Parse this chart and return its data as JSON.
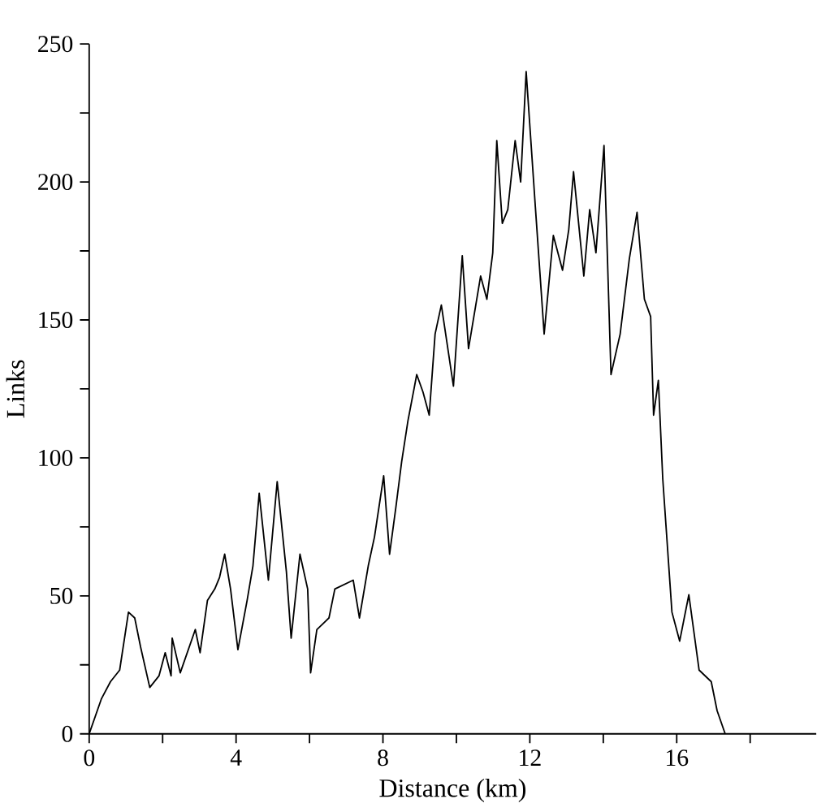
{
  "chart_data": {
    "type": "line",
    "xlabel": "Distance (km)",
    "ylabel": "Links",
    "xlim": [
      0,
      19.8
    ],
    "ylim": [
      0,
      250
    ],
    "xticks": [
      0,
      {
        "value": 2,
        "label": null
      },
      4,
      {
        "value": 6,
        "label": null
      },
      8,
      {
        "value": 10,
        "label": null
      },
      12,
      {
        "value": 14,
        "label": null
      },
      16,
      {
        "value": 18,
        "label": null
      }
    ],
    "yticks": [
      0,
      {
        "value": 25,
        "label": null
      },
      50,
      {
        "value": 75,
        "label": null
      },
      100,
      {
        "value": 125,
        "label": null
      },
      150,
      {
        "value": 175,
        "label": null
      },
      200,
      {
        "value": 225,
        "label": null
      },
      250
    ],
    "grid": false,
    "marker": "none",
    "line_style": "solid",
    "series": [
      {
        "color": "#000000",
        "x": [
          0,
          0.33,
          0.58,
          0.83,
          1.07,
          1.24,
          1.4,
          1.65,
          1.9,
          2.07,
          2.23,
          2.26,
          2.48,
          2.89,
          3.02,
          3.22,
          3.42,
          3.55,
          3.69,
          3.85,
          4.05,
          4.3,
          4.46,
          4.63,
          4.88,
          5.12,
          5.37,
          5.5,
          5.74,
          5.95,
          6.03,
          6.2,
          6.53,
          6.69,
          7.19,
          7.36,
          7.6,
          7.77,
          8.02,
          8.18,
          8.35,
          8.51,
          8.68,
          8.92,
          9.09,
          9.26,
          9.42,
          9.59,
          9.92,
          10.16,
          10.33,
          10.66,
          10.83,
          10.99,
          11.1,
          11.25,
          11.4,
          11.6,
          11.75,
          11.9,
          12.15,
          12.39,
          12.64,
          12.89,
          13.06,
          13.19,
          13.47,
          13.63,
          13.8,
          14.02,
          14.21,
          14.46,
          14.71,
          14.92,
          15.12,
          15.29,
          15.37,
          15.5,
          15.62,
          15.87,
          16.08,
          16.33,
          16.61,
          16.94,
          17.1,
          17.32
        ],
        "values": [
          0,
          12.6,
          18.9,
          23.1,
          44.1,
          42,
          31.5,
          16.8,
          21,
          29.4,
          21,
          34.7,
          22.1,
          37.8,
          29.4,
          48.3,
          52.5,
          56.7,
          65.1,
          52.5,
          30.5,
          48.3,
          60.9,
          87.2,
          55.7,
          91.4,
          58.8,
          34.7,
          65.1,
          52.5,
          22.1,
          37.8,
          42,
          52.5,
          55.7,
          42,
          60.9,
          71.4,
          93.5,
          65.1,
          81.9,
          98.7,
          113.4,
          130.2,
          123.9,
          115.5,
          144.9,
          155.4,
          126,
          173.3,
          139.6,
          165.9,
          157.5,
          174.3,
          215,
          185,
          190,
          215,
          200,
          240,
          191,
          144.9,
          180.6,
          168,
          182.7,
          203.7,
          165.9,
          190,
          174.3,
          213.2,
          130.2,
          144.9,
          172.2,
          189,
          157.5,
          151.2,
          115.5,
          128.1,
          92.4,
          44.1,
          33.6,
          50.4,
          23.1,
          18.9,
          8.4,
          0
        ]
      }
    ]
  }
}
